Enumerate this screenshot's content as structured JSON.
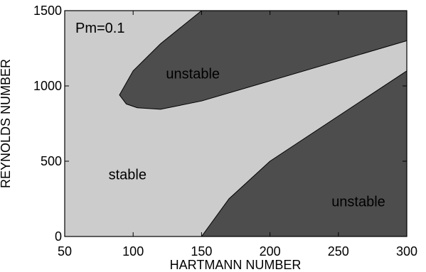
{
  "chart_data": {
    "type": "area",
    "title": "",
    "annotation": "Pm=0.1",
    "xlabel": "HARTMANN NUMBER",
    "ylabel": "REYNOLDS NUMBER",
    "xlim": [
      50,
      300
    ],
    "ylim": [
      0,
      1500
    ],
    "xticks": [
      "50",
      "100",
      "150",
      "200",
      "250",
      "300"
    ],
    "yticks": [
      "0",
      "500",
      "1000",
      "1500"
    ],
    "grid": false,
    "colors": {
      "stable": "#cccccc",
      "unstable": "#4d4d4d",
      "axes": "#000000"
    },
    "regions": [
      {
        "label": "unstable",
        "label_at": [
          124,
          1050
        ],
        "boundary": [
          [
            150,
            1500
          ],
          [
            120,
            1280
          ],
          [
            100,
            1100
          ],
          [
            90,
            940
          ],
          [
            95,
            880
          ],
          [
            103,
            855
          ],
          [
            120,
            845
          ],
          [
            150,
            900
          ],
          [
            300,
            1300
          ],
          [
            300,
            1500
          ]
        ]
      },
      {
        "label": "unstable",
        "label_at": [
          245,
          200
        ],
        "boundary": [
          [
            150,
            0
          ],
          [
            170,
            250
          ],
          [
            200,
            500
          ],
          [
            300,
            1100
          ],
          [
            300,
            0
          ]
        ]
      },
      {
        "label": "stable",
        "label_at": [
          82,
          380
        ],
        "boundary": []
      }
    ]
  }
}
